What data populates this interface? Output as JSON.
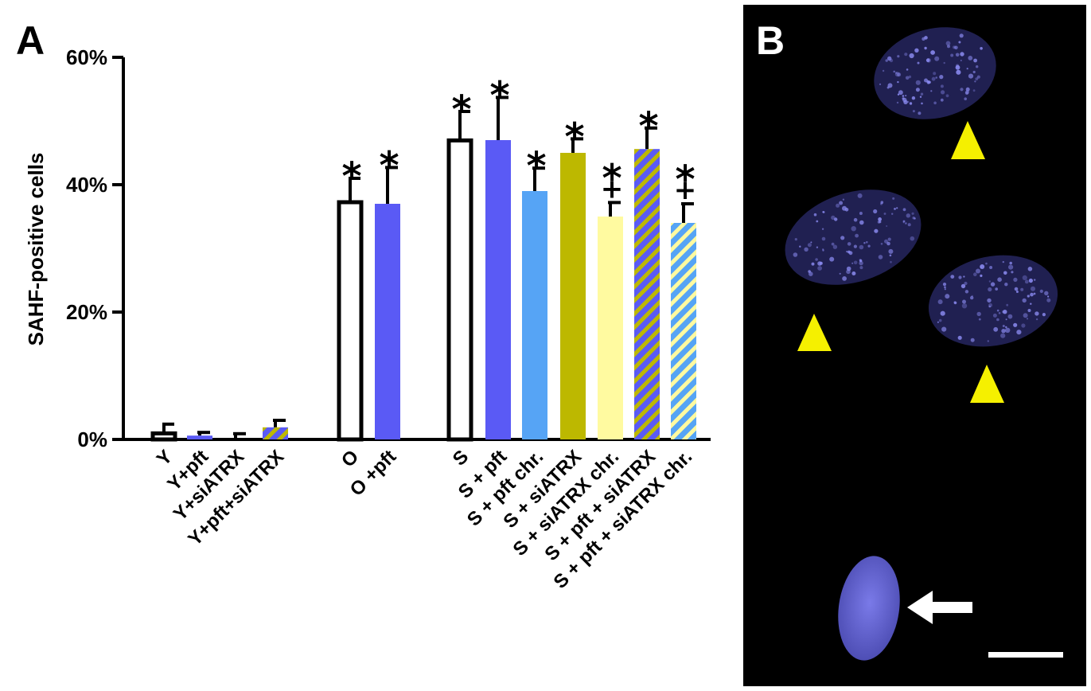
{
  "panel_a": {
    "label": "A"
  },
  "panel_b": {
    "label": "B"
  },
  "colors": {
    "outline": "#000000",
    "blue": "#5a5af5",
    "light_blue": "#56a4f5",
    "olive": "#bdb800",
    "pale_yellow": "#fffaa0",
    "arrowhead_yellow": "#f5f000",
    "nucleus": "#6a6ad8",
    "micrograph_bg": "#000000"
  },
  "chart_data": {
    "type": "bar",
    "ylabel": "SAHF-positive cells",
    "ylim": [
      0,
      60
    ],
    "yticks": [
      "0%",
      "20%",
      "40%",
      "60%"
    ],
    "yticks_values": [
      0,
      20,
      40,
      60
    ],
    "grid": false,
    "groups": [
      {
        "bars": [
          {
            "label": "Y",
            "value": 1.2,
            "error": 1.2,
            "style": "outline",
            "sig": []
          },
          {
            "label": "Y+pft",
            "value": 0.6,
            "error": 0.5,
            "style": "blue",
            "sig": []
          },
          {
            "label": "Y+siATRX",
            "value": 0.0,
            "error": 0.9,
            "style": "olive",
            "sig": []
          },
          {
            "label": "Y+pft+siATRX",
            "value": 1.9,
            "error": 1.1,
            "style": "stripe-blue-olive",
            "sig": []
          }
        ]
      },
      {
        "bars": [
          {
            "label": "O",
            "value": 37.5,
            "error": 3.5,
            "style": "outline",
            "sig": [
              "*"
            ]
          },
          {
            "label": "O +pft",
            "value": 37.0,
            "error": 5.7,
            "style": "blue",
            "sig": [
              "*"
            ]
          }
        ]
      },
      {
        "bars": [
          {
            "label": "S",
            "value": 47.2,
            "error": 4.3,
            "style": "outline",
            "sig": [
              "*"
            ]
          },
          {
            "label": "S + pft",
            "value": 47.0,
            "error": 6.7,
            "style": "blue",
            "sig": [
              "*"
            ]
          },
          {
            "label": "S + pft chr.",
            "value": 39.0,
            "error": 3.6,
            "style": "light_blue",
            "sig": [
              "*"
            ]
          },
          {
            "label": "S + siATRX",
            "value": 45.0,
            "error": 2.2,
            "style": "olive",
            "sig": [
              "*"
            ]
          },
          {
            "label": "S + siATRX chr.",
            "value": 35.0,
            "error": 2.2,
            "style": "pale_yellow",
            "sig": [
              "*",
              "+"
            ]
          },
          {
            "label": "S + pft + siATRX",
            "value": 45.6,
            "error": 3.3,
            "style": "stripe-blue-olive",
            "sig": [
              "*"
            ]
          },
          {
            "label": "S + pft + siATRX chr.",
            "value": 34.0,
            "error": 3.0,
            "style": "stripe-lightblue-yellow",
            "sig": [
              "*",
              "+"
            ]
          }
        ]
      }
    ]
  }
}
